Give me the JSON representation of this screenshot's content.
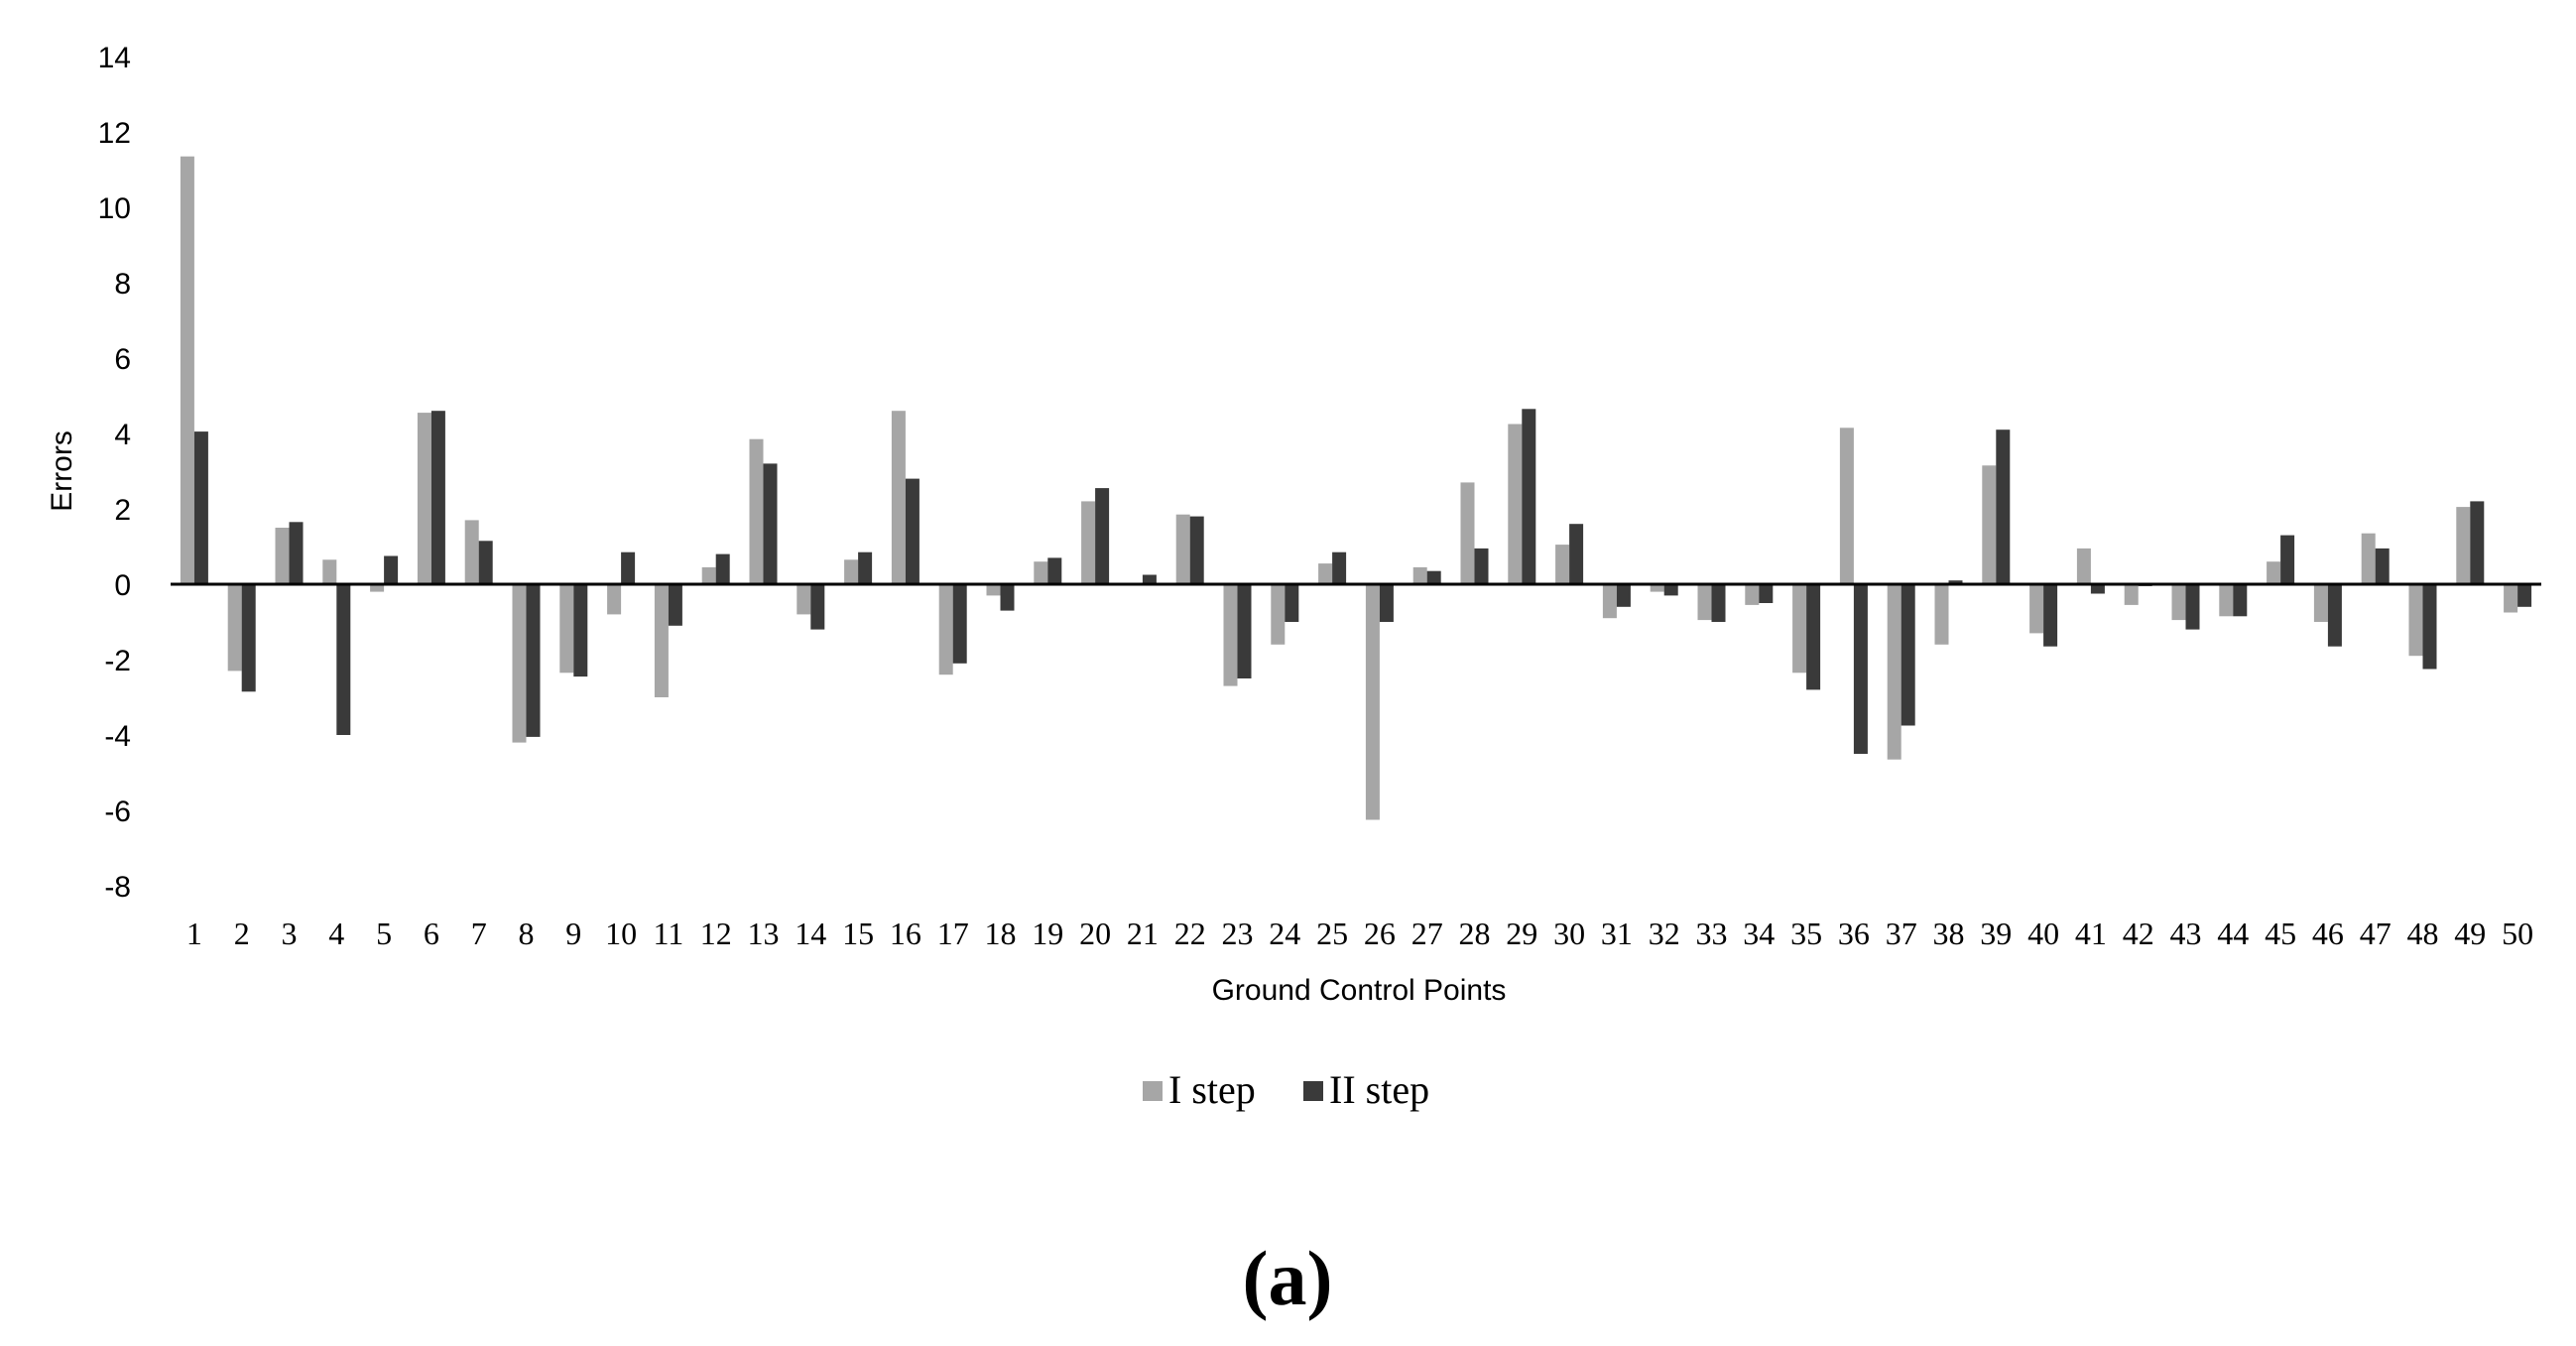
{
  "chart_data": {
    "type": "bar",
    "title": "",
    "xlabel": "Ground Control Points",
    "ylabel": "Errors",
    "ylim": [
      -8,
      14
    ],
    "yticks": [
      14,
      12,
      10,
      8,
      6,
      4,
      2,
      0,
      -2,
      -4,
      -6,
      -8
    ],
    "categories": [
      "1",
      "2",
      "3",
      "4",
      "5",
      "6",
      "7",
      "8",
      "9",
      "10",
      "11",
      "12",
      "13",
      "14",
      "15",
      "16",
      "17",
      "18",
      "19",
      "20",
      "21",
      "22",
      "23",
      "24",
      "25",
      "26",
      "27",
      "28",
      "29",
      "30",
      "31",
      "32",
      "33",
      "34",
      "35",
      "36",
      "37",
      "38",
      "39",
      "40",
      "41",
      "42",
      "43",
      "44",
      "45",
      "46",
      "47",
      "48",
      "49",
      "50"
    ],
    "series": [
      {
        "name": "I step",
        "color": "#a6a6a6",
        "values": [
          11.35,
          -2.3,
          1.5,
          0.65,
          -0.2,
          4.55,
          1.7,
          -4.2,
          -2.35,
          -0.8,
          -3.0,
          0.45,
          3.85,
          -0.8,
          0.65,
          4.6,
          -2.4,
          -0.3,
          0.6,
          2.2,
          0.0,
          1.85,
          -2.7,
          -1.6,
          0.55,
          -6.25,
          0.45,
          2.7,
          4.25,
          1.05,
          -0.9,
          -0.2,
          -0.95,
          -0.55,
          -2.35,
          4.15,
          -4.65,
          -1.6,
          3.15,
          -1.3,
          0.95,
          -0.55,
          -0.95,
          -0.85,
          0.6,
          -1.0,
          1.35,
          -1.9,
          2.05,
          -0.75
        ]
      },
      {
        "name": "II step",
        "color": "#3a3a3a",
        "values": [
          4.05,
          -2.85,
          1.65,
          -4.0,
          0.75,
          4.6,
          1.15,
          -4.05,
          -2.45,
          0.85,
          -1.1,
          0.8,
          3.2,
          -1.2,
          0.85,
          2.8,
          -2.1,
          -0.7,
          0.7,
          2.55,
          0.25,
          1.8,
          -2.5,
          -1.0,
          0.85,
          -1.0,
          0.35,
          0.95,
          4.65,
          1.6,
          -0.6,
          -0.3,
          -1.0,
          -0.5,
          -2.8,
          -4.5,
          -3.75,
          0.1,
          4.1,
          -1.65,
          -0.25,
          -0.05,
          -1.2,
          -0.85,
          1.3,
          -1.65,
          0.95,
          -2.25,
          2.2,
          -0.6
        ]
      }
    ],
    "grid": false,
    "legend": "bottom-center",
    "caption": "(a)"
  }
}
